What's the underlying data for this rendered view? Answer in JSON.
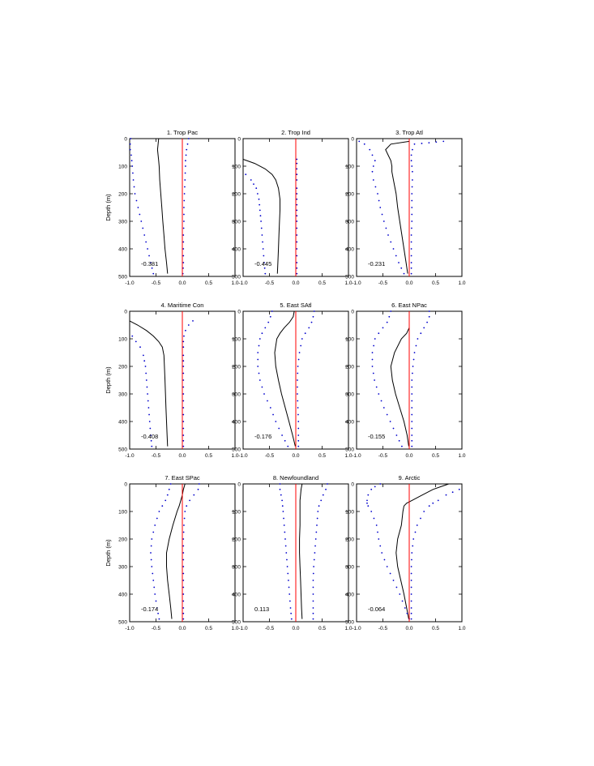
{
  "chart_data": [
    {
      "type": "line",
      "title": "1. Trop Pac",
      "xlim": [
        -1.0,
        1.0
      ],
      "ylim": [
        0,
        500
      ],
      "yaxis_reversed": true,
      "ylabel": "Depth (m)",
      "xticks": [
        "-1.0",
        "-0.5",
        "0.0",
        "0.5",
        "1.0"
      ],
      "yticks": [
        "0",
        "100",
        "200",
        "300",
        "400",
        "500"
      ],
      "annotation": "-0.381",
      "depth": [
        0,
        20,
        40,
        60,
        80,
        100,
        150,
        200,
        250,
        300,
        350,
        400,
        450,
        490
      ],
      "series": [
        {
          "style": "solid-black",
          "values": [
            -0.45,
            -0.46,
            -0.47,
            -0.46,
            -0.45,
            -0.44,
            -0.43,
            -0.41,
            -0.39,
            -0.37,
            -0.35,
            -0.33,
            -0.3,
            -0.28
          ]
        },
        {
          "style": "dotted-blue",
          "values": [
            -0.98,
            -0.99,
            -0.99,
            -0.97,
            -0.96,
            -0.95,
            -0.93,
            -0.9,
            -0.84,
            -0.78,
            -0.72,
            -0.66,
            -0.6,
            -0.55
          ]
        },
        {
          "style": "dotted-blue",
          "values": [
            0.12,
            0.1,
            0.08,
            0.07,
            0.06,
            0.06,
            0.05,
            0.04,
            0.03,
            0.03,
            0.02,
            0.02,
            0.02,
            0.01
          ]
        },
        {
          "style": "solid-red",
          "values": [
            0.0,
            0.0
          ]
        }
      ]
    },
    {
      "type": "line",
      "title": "2. Trop Ind",
      "xlim": [
        -1.0,
        1.0
      ],
      "ylim": [
        0,
        500
      ],
      "yaxis_reversed": true,
      "xticks": [
        "-1.0",
        "-0.5",
        "0.0",
        "0.5",
        "1.0"
      ],
      "yticks": [
        "0",
        "100",
        "200",
        "300",
        "400",
        "500"
      ],
      "annotation": "-0.445",
      "depth": [
        75,
        90,
        110,
        130,
        150,
        180,
        220,
        260,
        300,
        350,
        400,
        450,
        490
      ],
      "series": [
        {
          "style": "solid-black",
          "values": [
            -1.0,
            -0.78,
            -0.58,
            -0.45,
            -0.38,
            -0.33,
            -0.3,
            -0.3,
            -0.31,
            -0.32,
            -0.33,
            -0.34,
            -0.35
          ]
        },
        {
          "style": "dotted-blue",
          "values": [
            null,
            null,
            null,
            -0.95,
            -0.85,
            -0.75,
            -0.7,
            -0.68,
            -0.66,
            -0.64,
            -0.62,
            -0.6,
            -0.58
          ]
        },
        {
          "style": "dotted-blue",
          "values": [
            0.02,
            0.02,
            0.02,
            0.02,
            0.02,
            0.02,
            0.02,
            0.02,
            0.02,
            0.02,
            0.02,
            0.02,
            0.02
          ]
        },
        {
          "style": "solid-red",
          "values": [
            0.0,
            0.0
          ]
        }
      ]
    },
    {
      "type": "line",
      "title": "3. Trop Atl",
      "xlim": [
        -1.0,
        1.0
      ],
      "ylim": [
        0,
        500
      ],
      "yaxis_reversed": true,
      "xticks": [
        "-1.0",
        "-0.5",
        "0.0",
        "0.5",
        "1.0"
      ],
      "yticks": [
        "0",
        "100",
        "200",
        "300",
        "400",
        "500"
      ],
      "annotation": "-0.231",
      "depth": [
        10,
        20,
        40,
        60,
        80,
        100,
        120,
        150,
        200,
        250,
        300,
        350,
        400,
        450,
        490
      ],
      "series": [
        {
          "style": "solid-black",
          "values": [
            0.0,
            -0.35,
            -0.45,
            -0.4,
            -0.35,
            -0.33,
            -0.33,
            -0.3,
            -0.25,
            -0.22,
            -0.18,
            -0.14,
            -0.1,
            -0.06,
            -0.03
          ]
        },
        {
          "style": "dotted-blue",
          "values": [
            -0.95,
            -0.85,
            -0.75,
            -0.7,
            -0.65,
            -0.68,
            -0.7,
            -0.68,
            -0.6,
            -0.55,
            -0.48,
            -0.4,
            -0.3,
            -0.2,
            -0.1
          ]
        },
        {
          "style": "dotted-blue",
          "values": [
            0.65,
            0.1,
            0.06,
            0.04,
            0.04,
            0.05,
            0.06,
            0.06,
            0.05,
            0.05,
            0.05,
            0.04,
            0.04,
            0.04,
            0.04
          ]
        },
        {
          "style": "solid-red",
          "values": [
            0.0,
            0.0
          ]
        }
      ]
    },
    {
      "type": "line",
      "title": "4. Maritime Con",
      "xlim": [
        -1.0,
        1.0
      ],
      "ylim": [
        0,
        500
      ],
      "yaxis_reversed": true,
      "ylabel": "Depth (m)",
      "xticks": [
        "-1.0",
        "-0.5",
        "0.0",
        "0.5",
        "1.0"
      ],
      "yticks": [
        "0",
        "100",
        "200",
        "300",
        "400",
        "500"
      ],
      "annotation": "-0.408",
      "depth": [
        35,
        50,
        70,
        90,
        110,
        130,
        160,
        200,
        250,
        300,
        350,
        400,
        450,
        490
      ],
      "series": [
        {
          "style": "solid-black",
          "values": [
            -1.0,
            -0.85,
            -0.68,
            -0.55,
            -0.45,
            -0.38,
            -0.35,
            -0.34,
            -0.33,
            -0.32,
            -0.31,
            -0.3,
            -0.29,
            -0.28
          ]
        },
        {
          "style": "dotted-blue",
          "values": [
            null,
            null,
            null,
            -0.95,
            -0.88,
            -0.8,
            -0.74,
            -0.7,
            -0.68,
            -0.66,
            -0.64,
            -0.62,
            -0.6,
            -0.58
          ]
        },
        {
          "style": "dotted-blue",
          "values": [
            0.2,
            0.12,
            0.06,
            0.03,
            0.02,
            0.02,
            0.02,
            0.02,
            0.02,
            0.02,
            0.02,
            0.02,
            0.02,
            0.02
          ]
        },
        {
          "style": "solid-red",
          "values": [
            0.0,
            0.0
          ]
        }
      ]
    },
    {
      "type": "line",
      "title": "5. East SAtl",
      "xlim": [
        -1.0,
        1.0
      ],
      "ylim": [
        0,
        500
      ],
      "yaxis_reversed": true,
      "xticks": [
        "-1.0",
        "-0.5",
        "0.0",
        "0.5",
        "1.0"
      ],
      "yticks": [
        "0",
        "100",
        "200",
        "300",
        "400",
        "500"
      ],
      "annotation": "-0.176",
      "depth": [
        0,
        20,
        40,
        60,
        80,
        100,
        150,
        200,
        250,
        300,
        350,
        400,
        450,
        490
      ],
      "series": [
        {
          "style": "solid-black",
          "values": [
            -0.03,
            -0.05,
            -0.12,
            -0.22,
            -0.3,
            -0.36,
            -0.4,
            -0.38,
            -0.33,
            -0.27,
            -0.2,
            -0.13,
            -0.06,
            -0.01
          ]
        },
        {
          "style": "dotted-blue",
          "values": [
            -0.45,
            -0.48,
            -0.52,
            -0.58,
            -0.64,
            -0.68,
            -0.72,
            -0.72,
            -0.68,
            -0.6,
            -0.48,
            -0.38,
            -0.26,
            -0.15
          ]
        },
        {
          "style": "dotted-blue",
          "values": [
            0.35,
            0.33,
            0.3,
            0.25,
            0.18,
            0.12,
            0.07,
            0.04,
            0.03,
            0.03,
            0.04,
            0.05,
            0.05,
            0.05
          ]
        },
        {
          "style": "solid-red",
          "values": [
            0.0,
            0.0
          ]
        }
      ]
    },
    {
      "type": "line",
      "title": "6. East NPac",
      "xlim": [
        -1.0,
        1.0
      ],
      "ylim": [
        0,
        500
      ],
      "yaxis_reversed": true,
      "xticks": [
        "-1.0",
        "-0.5",
        "0.0",
        "0.5",
        "1.0"
      ],
      "yticks": [
        "0",
        "100",
        "200",
        "300",
        "400",
        "500"
      ],
      "annotation": "-0.155",
      "depth": [
        0,
        20,
        40,
        60,
        80,
        100,
        150,
        200,
        250,
        300,
        350,
        400,
        450,
        490
      ],
      "series": [
        {
          "style": "solid-black",
          "values": [
            0.0,
            0.0,
            0.0,
            0.0,
            -0.05,
            -0.15,
            -0.28,
            -0.35,
            -0.32,
            -0.26,
            -0.18,
            -0.1,
            -0.04,
            -0.01
          ]
        },
        {
          "style": "dotted-blue",
          "values": [
            -0.35,
            -0.38,
            -0.42,
            -0.5,
            -0.58,
            -0.65,
            -0.7,
            -0.7,
            -0.66,
            -0.58,
            -0.48,
            -0.36,
            -0.24,
            -0.14
          ]
        },
        {
          "style": "dotted-blue",
          "values": [
            0.38,
            0.38,
            0.34,
            0.28,
            0.22,
            0.16,
            0.1,
            0.07,
            0.05,
            0.05,
            0.05,
            0.05,
            0.05,
            0.05
          ]
        },
        {
          "style": "solid-red",
          "values": [
            0.0,
            0.0
          ]
        }
      ]
    },
    {
      "type": "line",
      "title": "7. East SPac",
      "xlim": [
        -1.0,
        1.0
      ],
      "ylim": [
        0,
        500
      ],
      "yaxis_reversed": true,
      "ylabel": "Depth (m)",
      "xticks": [
        "-1.0",
        "-0.5",
        "0.0",
        "0.5",
        "1.0"
      ],
      "yticks": [
        "0",
        "100",
        "200",
        "300",
        "400",
        "500"
      ],
      "annotation": "-0.174",
      "depth": [
        0,
        20,
        40,
        60,
        80,
        100,
        150,
        200,
        250,
        300,
        350,
        400,
        450,
        490
      ],
      "series": [
        {
          "style": "solid-black",
          "values": [
            0.05,
            0.02,
            0.0,
            -0.03,
            -0.06,
            -0.1,
            -0.18,
            -0.25,
            -0.3,
            -0.3,
            -0.28,
            -0.25,
            -0.22,
            -0.2
          ]
        },
        {
          "style": "dotted-blue",
          "values": [
            -0.22,
            -0.25,
            -0.28,
            -0.32,
            -0.38,
            -0.44,
            -0.52,
            -0.58,
            -0.6,
            -0.58,
            -0.55,
            -0.52,
            -0.48,
            -0.44
          ]
        },
        {
          "style": "dotted-blue",
          "values": [
            0.32,
            0.3,
            0.22,
            0.14,
            0.08,
            0.05,
            0.03,
            0.02,
            0.02,
            0.02,
            0.02,
            0.02,
            0.02,
            0.02
          ]
        },
        {
          "style": "solid-red",
          "values": [
            0.0,
            0.0
          ]
        }
      ]
    },
    {
      "type": "line",
      "title": "8. Newfoundland",
      "xlim": [
        -1.0,
        1.0
      ],
      "ylim": [
        0,
        500
      ],
      "yaxis_reversed": true,
      "xticks": [
        "-1.0",
        "-0.5",
        "0.0",
        "0.5",
        "1.0"
      ],
      "yticks": [
        "0",
        "100",
        "200",
        "300",
        "400",
        "500"
      ],
      "annotation": "0.113",
      "depth": [
        0,
        20,
        40,
        60,
        80,
        100,
        150,
        200,
        250,
        300,
        350,
        400,
        450,
        490
      ],
      "series": [
        {
          "style": "solid-black",
          "values": [
            0.12,
            0.1,
            0.09,
            0.08,
            0.08,
            0.08,
            0.08,
            0.07,
            0.07,
            0.08,
            0.09,
            0.1,
            0.11,
            0.12
          ]
        },
        {
          "style": "dotted-blue",
          "values": [
            -0.3,
            -0.3,
            -0.28,
            -0.26,
            -0.25,
            -0.24,
            -0.22,
            -0.2,
            -0.18,
            -0.16,
            -0.14,
            -0.12,
            -0.1,
            -0.08
          ]
        },
        {
          "style": "dotted-blue",
          "values": [
            0.6,
            0.57,
            0.52,
            0.48,
            0.44,
            0.42,
            0.4,
            0.38,
            0.36,
            0.34,
            0.33,
            0.33,
            0.33,
            0.33
          ]
        },
        {
          "style": "solid-red",
          "values": [
            0.0,
            0.0
          ]
        }
      ]
    },
    {
      "type": "line",
      "title": "9. Arctic",
      "xlim": [
        -1.0,
        1.0
      ],
      "ylim": [
        0,
        500
      ],
      "yaxis_reversed": true,
      "xticks": [
        "-1.0",
        "-0.5",
        "0.0",
        "0.5",
        "1.0"
      ],
      "yticks": [
        "0",
        "100",
        "200",
        "300",
        "400",
        "500"
      ],
      "annotation": "-0.064",
      "depth": [
        0,
        10,
        20,
        40,
        60,
        70,
        80,
        100,
        150,
        200,
        250,
        300,
        350,
        400,
        450,
        490
      ],
      "series": [
        {
          "style": "solid-black",
          "values": [
            0.75,
            0.6,
            0.45,
            0.25,
            0.05,
            -0.05,
            -0.1,
            -0.12,
            -0.15,
            -0.22,
            -0.25,
            -0.22,
            -0.16,
            -0.1,
            -0.05,
            -0.01
          ]
        },
        {
          "style": "dotted-blue",
          "values": [
            -0.55,
            -0.65,
            -0.72,
            -0.78,
            -0.8,
            -0.8,
            -0.78,
            -0.72,
            -0.62,
            -0.58,
            -0.52,
            -0.42,
            -0.3,
            -0.18,
            -0.08,
            0.0
          ]
        },
        {
          "style": "dotted-blue",
          "values": [
            null,
            null,
            0.95,
            0.7,
            0.55,
            0.45,
            0.38,
            0.28,
            0.15,
            0.08,
            0.05,
            0.04,
            0.04,
            0.04,
            0.04,
            0.04
          ]
        },
        {
          "style": "solid-red",
          "values": [
            0.0,
            0.0
          ]
        }
      ]
    }
  ],
  "colors": {
    "black": "#000000",
    "red": "#ff0000",
    "blue": "#0000cc"
  }
}
